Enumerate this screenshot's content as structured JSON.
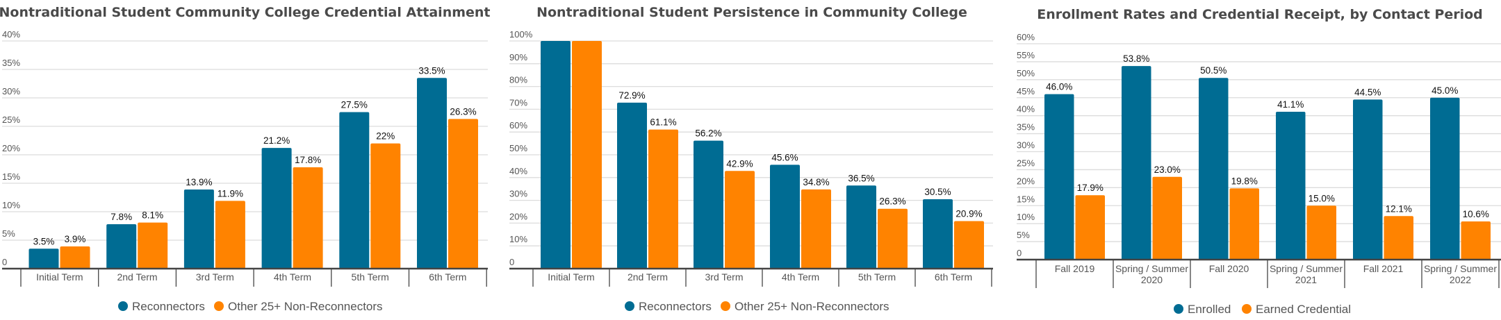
{
  "colors": {
    "series_a": "#006C93",
    "series_b": "#FF8300"
  },
  "chart_data": [
    {
      "type": "bar",
      "title": "Nontraditional Student Community College Credential Attainment",
      "categories": [
        "Initial Term",
        "2nd Term",
        "3rd Term",
        "4th Term",
        "5th Term",
        "6th Term"
      ],
      "ylim": [
        0,
        40
      ],
      "yticks": [
        0,
        5,
        10,
        15,
        20,
        25,
        30,
        35,
        40
      ],
      "ytick_labels": [
        "0",
        "5%",
        "10%",
        "15%",
        "20%",
        "25%",
        "30%",
        "35%",
        "40%"
      ],
      "grid": true,
      "legend": "bottom",
      "series": [
        {
          "name": "Reconnectors",
          "values": [
            3.5,
            7.8,
            13.9,
            21.2,
            27.5,
            33.5
          ],
          "labels": [
            "3.5%",
            "7.8%",
            "13.9%",
            "21.2%",
            "27.5%",
            "33.5%"
          ]
        },
        {
          "name": "Other 25+ Non-Reconnectors",
          "values": [
            3.9,
            8.1,
            11.9,
            17.8,
            22,
            26.3
          ],
          "labels": [
            "3.9%",
            "8.1%",
            "11.9%",
            "17.8%",
            "22%",
            "26.3%"
          ]
        }
      ]
    },
    {
      "type": "bar",
      "title": "Nontraditional Student Persistence in Community College",
      "categories": [
        "Initial Term",
        "2nd Term",
        "3rd Term",
        "4th Term",
        "5th Term",
        "6th Term"
      ],
      "ylim": [
        0,
        100
      ],
      "yticks": [
        0,
        10,
        20,
        30,
        40,
        50,
        60,
        70,
        80,
        90,
        100
      ],
      "ytick_labels": [
        "0",
        "10%",
        "20%",
        "30%",
        "40%",
        "50%",
        "60%",
        "70%",
        "80%",
        "90%",
        "100%"
      ],
      "grid": true,
      "legend": "bottom",
      "series": [
        {
          "name": "Reconnectors",
          "values": [
            100,
            72.9,
            56.2,
            45.6,
            36.5,
            30.5
          ],
          "labels": [
            null,
            "72.9%",
            "56.2%",
            "45.6%",
            "36.5%",
            "30.5%"
          ]
        },
        {
          "name": "Other 25+ Non-Reconnectors",
          "values": [
            100,
            61.1,
            42.9,
            34.8,
            26.3,
            20.9
          ],
          "labels": [
            null,
            "61.1%",
            "42.9%",
            "34.8%",
            "26.3%",
            "20.9%"
          ]
        }
      ]
    },
    {
      "type": "bar",
      "title": "Enrollment Rates and Credential Receipt, by Contact Period",
      "categories": [
        [
          "Fall 2019"
        ],
        [
          "Spring / Summer",
          "2020"
        ],
        [
          "Fall 2020"
        ],
        [
          "Spring / Summer",
          "2021"
        ],
        [
          "Fall 2021"
        ],
        [
          "Spring / Summer",
          "2022"
        ]
      ],
      "ylim": [
        0,
        60
      ],
      "yticks": [
        0,
        5,
        10,
        15,
        20,
        25,
        30,
        35,
        40,
        45,
        50,
        55,
        60
      ],
      "ytick_labels": [
        "0",
        "5%",
        "10%",
        "15%",
        "20%",
        "25%",
        "30%",
        "35%",
        "40%",
        "45%",
        "50%",
        "55%",
        "60%"
      ],
      "grid": true,
      "legend": "bottom",
      "series": [
        {
          "name": "Enrolled",
          "values": [
            46.0,
            53.8,
            50.5,
            41.1,
            44.5,
            45.0
          ],
          "labels": [
            "46.0%",
            "53.8%",
            "50.5%",
            "41.1%",
            "44.5%",
            "45.0%"
          ]
        },
        {
          "name": "Earned Credential",
          "values": [
            17.9,
            23.0,
            19.8,
            15.0,
            12.1,
            10.6
          ],
          "labels": [
            "17.9%",
            "23.0%",
            "19.8%",
            "15.0%",
            "12.1%",
            "10.6%"
          ]
        }
      ]
    }
  ]
}
